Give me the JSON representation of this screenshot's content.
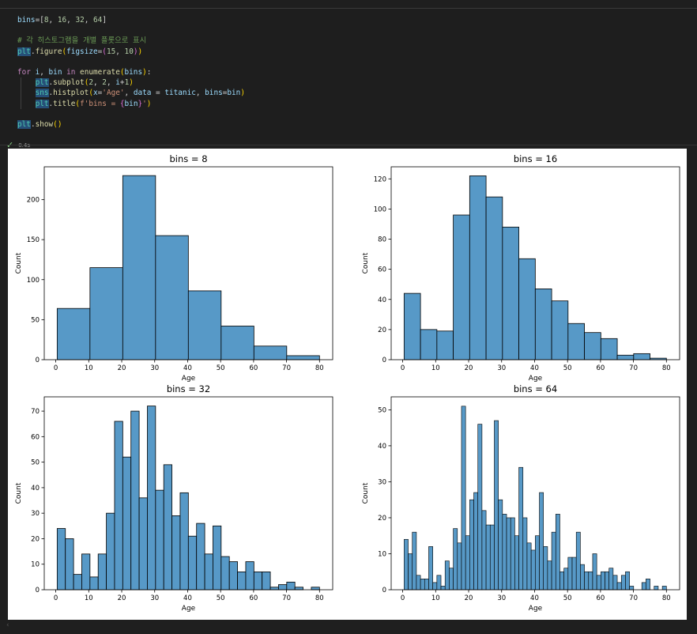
{
  "cell": {
    "exec_time": "0.4s",
    "code_lines": [
      [
        [
          "kw-var",
          "bins"
        ],
        [
          "",
          "="
        ],
        [
          "",
          "["
        ],
        [
          "kw-num",
          "8"
        ],
        [
          "",
          ", "
        ],
        [
          "kw-num",
          "16"
        ],
        [
          "",
          ", "
        ],
        [
          "kw-num",
          "32"
        ],
        [
          "",
          ", "
        ],
        [
          "kw-num",
          "64"
        ],
        [
          "",
          "]"
        ]
      ],
      [],
      [
        [
          "kw-com",
          "# 각 히스토그램을 개별 플롯으로 표시"
        ]
      ],
      [
        [
          "kw-mod",
          "plt"
        ],
        [
          "",
          "."
        ],
        [
          "kw-fn",
          "figure"
        ],
        [
          "kw-brk",
          "("
        ],
        [
          "kw-var",
          "figsize"
        ],
        [
          "",
          "="
        ],
        [
          "kw-brk2",
          "("
        ],
        [
          "kw-num",
          "15"
        ],
        [
          "",
          ", "
        ],
        [
          "kw-num",
          "10"
        ],
        [
          "kw-brk2",
          ")"
        ],
        [
          "kw-brk",
          ")"
        ]
      ],
      [],
      [
        [
          "kw-ctl",
          "for "
        ],
        [
          "kw-var",
          "i"
        ],
        [
          "",
          ", "
        ],
        [
          "kw-var",
          "bin"
        ],
        [
          "kw-ctl",
          " in "
        ],
        [
          "kw-fn",
          "enumerate"
        ],
        [
          "kw-brk",
          "("
        ],
        [
          "kw-var",
          "bins"
        ],
        [
          "kw-brk",
          ")"
        ],
        [
          "",
          ":"
        ]
      ],
      [
        [
          "",
          "    "
        ],
        [
          "kw-mod",
          "plt"
        ],
        [
          "",
          "."
        ],
        [
          "kw-fn",
          "subplot"
        ],
        [
          "kw-brk",
          "("
        ],
        [
          "kw-num",
          "2"
        ],
        [
          "",
          ", "
        ],
        [
          "kw-num",
          "2"
        ],
        [
          "",
          ", "
        ],
        [
          "kw-var",
          "i"
        ],
        [
          "",
          "+"
        ],
        [
          "kw-num",
          "1"
        ],
        [
          "kw-brk",
          ")"
        ]
      ],
      [
        [
          "",
          "    "
        ],
        [
          "kw-mod",
          "sns"
        ],
        [
          "",
          "."
        ],
        [
          "kw-fn",
          "histplot"
        ],
        [
          "kw-brk",
          "("
        ],
        [
          "kw-var",
          "x"
        ],
        [
          "",
          "="
        ],
        [
          "kw-str",
          "'Age'"
        ],
        [
          "",
          ", "
        ],
        [
          "kw-var",
          "data"
        ],
        [
          "",
          " = "
        ],
        [
          "kw-var",
          "titanic"
        ],
        [
          "",
          ", "
        ],
        [
          "kw-var",
          "bins"
        ],
        [
          "",
          "="
        ],
        [
          "kw-var",
          "bin"
        ],
        [
          "kw-brk",
          ")"
        ]
      ],
      [
        [
          "",
          "    "
        ],
        [
          "kw-mod",
          "plt"
        ],
        [
          "",
          "."
        ],
        [
          "kw-fn",
          "title"
        ],
        [
          "kw-brk",
          "("
        ],
        [
          "kw-str",
          "f'bins = "
        ],
        [
          "kw-brk2",
          "{"
        ],
        [
          "kw-var",
          "bin"
        ],
        [
          "kw-brk2",
          "}"
        ],
        [
          "kw-str",
          "'"
        ],
        [
          "kw-brk",
          ")"
        ]
      ],
      [],
      [
        [
          "kw-mod",
          "plt"
        ],
        [
          "",
          "."
        ],
        [
          "kw-fn",
          "show"
        ],
        [
          "kw-brk",
          "()"
        ]
      ]
    ]
  },
  "icons": {
    "check": "check-icon",
    "scroll": "chevron-left-icon"
  },
  "colors": {
    "bar_fill": "#5799c7",
    "bar_edge": "#000000"
  },
  "chart_data": [
    {
      "type": "bar",
      "title": "bins = 8",
      "xlabel": "Age",
      "ylabel": "Count",
      "xlim": [
        -3.5,
        84
      ],
      "ylim": [
        0,
        241
      ],
      "xticks": [
        0,
        10,
        20,
        30,
        40,
        50,
        60,
        70,
        80
      ],
      "yticks": [
        0,
        50,
        100,
        150,
        200
      ],
      "bin_start": 0.42,
      "bin_width": 9.9475,
      "values": [
        64,
        115,
        230,
        155,
        86,
        42,
        17,
        5
      ]
    },
    {
      "type": "bar",
      "title": "bins = 16",
      "xlabel": "Age",
      "ylabel": "Count",
      "xlim": [
        -3.5,
        84
      ],
      "ylim": [
        0,
        128
      ],
      "xticks": [
        0,
        10,
        20,
        30,
        40,
        50,
        60,
        70,
        80
      ],
      "yticks": [
        0,
        20,
        40,
        60,
        80,
        100,
        120
      ],
      "bin_start": 0.42,
      "bin_width": 4.97375,
      "values": [
        44,
        20,
        19,
        96,
        122,
        108,
        88,
        67,
        47,
        39,
        24,
        18,
        14,
        3,
        4,
        1
      ]
    },
    {
      "type": "bar",
      "title": "bins = 32",
      "xlabel": "Age",
      "ylabel": "Count",
      "xlim": [
        -3.5,
        84
      ],
      "ylim": [
        0,
        75.6
      ],
      "xticks": [
        0,
        10,
        20,
        30,
        40,
        50,
        60,
        70,
        80
      ],
      "yticks": [
        0,
        10,
        20,
        30,
        40,
        50,
        60,
        70
      ],
      "bin_start": 0.42,
      "bin_width": 2.486875,
      "values": [
        24,
        20,
        6,
        14,
        5,
        14,
        30,
        66,
        52,
        70,
        36,
        72,
        39,
        49,
        29,
        38,
        21,
        26,
        14,
        25,
        13,
        11,
        7,
        11,
        7,
        7,
        1,
        2,
        3,
        1,
        0,
        1
      ]
    },
    {
      "type": "bar",
      "title": "bins = 64",
      "xlabel": "Age",
      "ylabel": "Count",
      "xlim": [
        -3.5,
        84
      ],
      "ylim": [
        0,
        53.6
      ],
      "xticks": [
        0,
        10,
        20,
        30,
        40,
        50,
        60,
        70,
        80
      ],
      "yticks": [
        0,
        10,
        20,
        30,
        40,
        50
      ],
      "bin_start": 0.42,
      "bin_width": 1.2434375,
      "values": [
        14,
        10,
        16,
        4,
        3,
        3,
        12,
        2,
        4,
        1,
        8,
        6,
        17,
        13,
        51,
        15,
        25,
        27,
        46,
        22,
        18,
        18,
        47,
        25,
        21,
        20,
        20,
        15,
        34,
        20,
        13,
        11,
        15,
        27,
        12,
        8,
        16,
        21,
        5,
        6,
        9,
        9,
        16,
        7,
        5,
        5,
        10,
        4,
        5,
        5,
        6,
        4,
        2,
        4,
        5,
        1,
        0,
        0,
        2,
        3,
        0,
        1,
        0,
        1
      ]
    }
  ]
}
